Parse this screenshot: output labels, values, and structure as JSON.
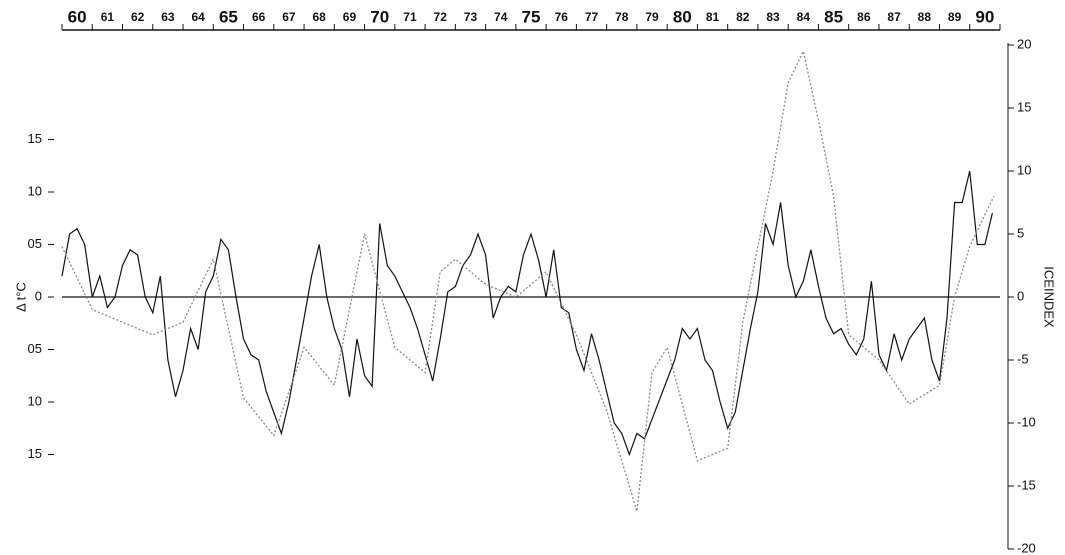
{
  "chart_data": {
    "type": "line",
    "y_label": "Δ t°C",
    "y2_label": "ICEINDEX",
    "xlim": [
      60,
      91
    ],
    "xticks": [
      60,
      61,
      62,
      63,
      64,
      65,
      66,
      67,
      68,
      69,
      70,
      71,
      72,
      73,
      74,
      75,
      76,
      77,
      78,
      79,
      80,
      81,
      82,
      83,
      84,
      85,
      86,
      87,
      88,
      89,
      90
    ],
    "ylim": [
      -2.4,
      2.4
    ],
    "yticks": [
      {
        "value": 1.5,
        "label": "15"
      },
      {
        "value": 1.0,
        "label": "10"
      },
      {
        "value": 0.5,
        "label": "05"
      },
      0,
      {
        "value": -0.5,
        "label": "05"
      },
      {
        "value": -1.0,
        "label": "10"
      },
      {
        "value": -1.5,
        "label": "15"
      }
    ],
    "y2lim": [
      -20,
      20
    ],
    "y2ticks": [
      20,
      15,
      10,
      5,
      0,
      -5,
      -10,
      -15,
      -20
    ],
    "series": [
      {
        "name": "Δ t°C",
        "color": "#111111",
        "x": [
          60,
          60.25,
          60.5,
          60.75,
          61,
          61.25,
          61.5,
          61.75,
          62,
          62.25,
          62.5,
          62.75,
          63,
          63.25,
          63.5,
          63.75,
          64,
          64.25,
          64.5,
          64.75,
          65,
          65.25,
          65.5,
          65.75,
          66,
          66.25,
          66.5,
          66.75,
          67,
          67.25,
          67.5,
          67.75,
          68,
          68.25,
          68.5,
          68.75,
          69,
          69.25,
          69.5,
          69.75,
          70,
          70.25,
          70.5,
          70.75,
          71,
          71.25,
          71.5,
          71.75,
          72,
          72.25,
          72.5,
          72.75,
          73,
          73.25,
          73.5,
          73.75,
          74,
          74.25,
          74.5,
          74.75,
          75,
          75.25,
          75.5,
          75.75,
          76,
          76.25,
          76.5,
          76.75,
          77,
          77.25,
          77.5,
          77.75,
          78,
          78.25,
          78.5,
          78.75,
          79,
          79.25,
          80.25,
          80.5,
          80.75,
          81,
          81.25,
          81.5,
          81.75,
          82,
          82.25,
          82.5,
          82.75,
          83,
          83.25,
          83.5,
          83.75,
          84,
          84.25,
          84.5,
          84.75,
          85,
          85.25,
          85.5,
          85.75,
          86,
          86.25,
          86.5,
          86.75,
          87,
          87.25,
          87.5,
          87.75,
          88,
          88.25,
          88.5,
          88.75,
          89,
          89.25,
          89.5,
          89.75,
          90,
          90.25,
          90.5,
          90.75
        ],
        "values": [
          0.2,
          0.6,
          0.65,
          0.5,
          0.0,
          0.2,
          -0.1,
          0.0,
          0.3,
          0.45,
          0.4,
          0.0,
          -0.15,
          0.2,
          -0.6,
          -0.95,
          -0.7,
          -0.3,
          -0.5,
          0.05,
          0.2,
          0.55,
          0.45,
          0.0,
          -0.4,
          -0.55,
          -0.6,
          -0.9,
          -1.1,
          -1.3,
          -1.0,
          -0.6,
          -0.2,
          0.2,
          0.5,
          0.0,
          -0.3,
          -0.5,
          -0.95,
          -0.4,
          -0.75,
          -0.85,
          0.7,
          0.3,
          0.2,
          0.05,
          -0.1,
          -0.3,
          -0.55,
          -0.8,
          -0.4,
          0.05,
          0.1,
          0.3,
          0.4,
          0.6,
          0.4,
          -0.2,
          0.0,
          0.1,
          0.05,
          0.4,
          0.6,
          0.35,
          0.0,
          0.45,
          -0.1,
          -0.15,
          -0.5,
          -0.7,
          -0.35,
          -0.6,
          -0.9,
          -1.2,
          -1.3,
          -1.5,
          -1.3,
          -1.35,
          -0.6,
          -0.3,
          -0.4,
          -0.3,
          -0.6,
          -0.7,
          -1.0,
          -1.25,
          -1.1,
          -0.7,
          -0.3,
          0.05,
          0.7,
          0.5,
          0.9,
          0.3,
          0.0,
          0.15,
          0.45,
          0.1,
          -0.2,
          -0.35,
          -0.3,
          -0.45,
          -0.55,
          -0.4,
          0.15,
          -0.55,
          -0.7,
          -0.35,
          -0.6,
          -0.4,
          -0.3,
          -0.2,
          -0.6,
          -0.8,
          -0.2,
          0.9,
          0.9,
          1.2,
          0.5,
          0.5,
          0.8
        ]
      },
      {
        "name": "ICEINDEX",
        "color": "#888888",
        "axis": "y2",
        "x": [
          60,
          61,
          62,
          63,
          64,
          65,
          66,
          67,
          68,
          69,
          70,
          71,
          72,
          72.5,
          73,
          74,
          75,
          76,
          77,
          78,
          79,
          79.5,
          80,
          81,
          82,
          82.5,
          83,
          83.5,
          84,
          84.5,
          85,
          85.5,
          86,
          87,
          88,
          89,
          89.5,
          90,
          90.8
        ],
        "values": [
          4,
          -1,
          -2,
          -3,
          -2,
          3,
          -8,
          -11,
          -4,
          -7,
          5,
          -4,
          -6,
          2,
          3,
          1,
          0,
          2,
          -3,
          -9,
          -17,
          -6,
          -4,
          -13,
          -12,
          -2,
          4,
          10,
          17,
          19.5,
          14,
          8,
          -3,
          -5,
          -8.5,
          -7,
          0,
          4,
          8
        ]
      }
    ]
  }
}
